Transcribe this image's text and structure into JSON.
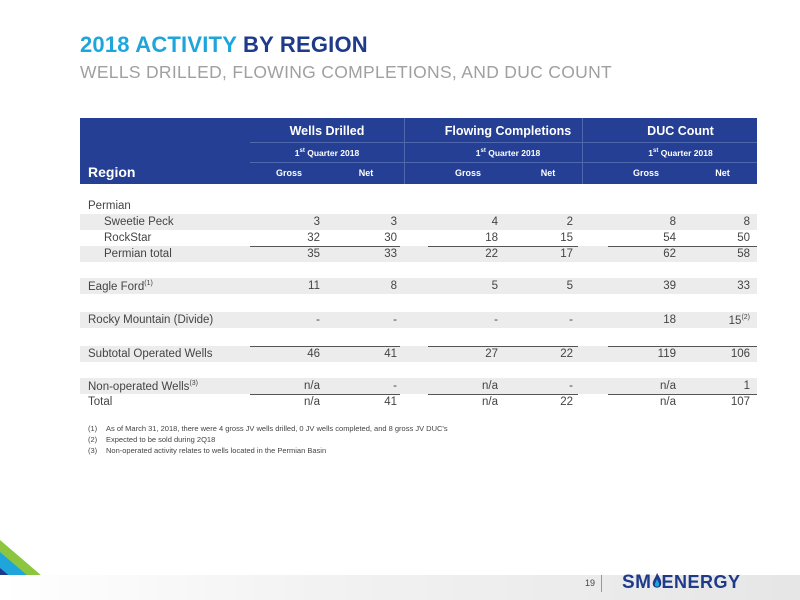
{
  "header": {
    "title_accent": "2018 ACTIVITY",
    "title_main": "BY REGION",
    "subtitle": "WELLS DRILLED, FLOWING COMPLETIONS, AND DUC COUNT"
  },
  "table": {
    "groups": [
      "Wells Drilled",
      "Flowing Completions",
      "DUC Count"
    ],
    "quarter_prefix": "1",
    "quarter_sup": "st",
    "quarter_suffix": " Quarter 2018",
    "region_label": "Region",
    "sub_headers": [
      "Gross",
      "Net",
      "Gross",
      "Net",
      "Gross",
      "Net"
    ],
    "rows": {
      "permian": {
        "label": "Permian"
      },
      "sweetie_peck": {
        "label": "Sweetie Peck",
        "values": [
          "3",
          "3",
          "4",
          "2",
          "8",
          "8"
        ]
      },
      "rockstar": {
        "label": "RockStar",
        "values": [
          "32",
          "30",
          "18",
          "15",
          "54",
          "50"
        ]
      },
      "permian_total": {
        "label": "Permian total",
        "values": [
          "35",
          "33",
          "22",
          "17",
          "62",
          "58"
        ]
      },
      "eagle_ford": {
        "label": "Eagle Ford",
        "sup": "(1)",
        "values": [
          "11",
          "8",
          "5",
          "5",
          "39",
          "33"
        ]
      },
      "rocky_mountain": {
        "label": "Rocky Mountain (Divide)",
        "values": [
          "-",
          "-",
          "-",
          "-",
          "18",
          "15"
        ],
        "last_sup": "(2)"
      },
      "subtotal": {
        "label": "Subtotal Operated Wells",
        "values": [
          "46",
          "41",
          "27",
          "22",
          "119",
          "106"
        ]
      },
      "non_operated": {
        "label": "Non-operated Wells",
        "sup": "(3)",
        "values": [
          "n/a",
          "-",
          "n/a",
          "-",
          "n/a",
          "1"
        ]
      },
      "total": {
        "label": "Total",
        "values": [
          "n/a",
          "41",
          "n/a",
          "22",
          "n/a",
          "107"
        ]
      }
    }
  },
  "footnotes": [
    {
      "num": "(1)",
      "text": "As of March 31, 2018, there were 4 gross JV wells drilled, 0 JV wells completed, and 8 gross JV DUC's"
    },
    {
      "num": "(2)",
      "text": "Expected to be sold during 2Q18"
    },
    {
      "num": "(3)",
      "text": "Non-operated activity relates to wells located in the Permian Basin"
    }
  ],
  "footer": {
    "page_number": "19",
    "logo_sm": "SM",
    "logo_energy": "ENERGY"
  },
  "colors": {
    "title_accent": "#1ea6dc",
    "title_main": "#1e3a8a",
    "header_bg": "#243f94",
    "row_shade": "#ececec"
  }
}
